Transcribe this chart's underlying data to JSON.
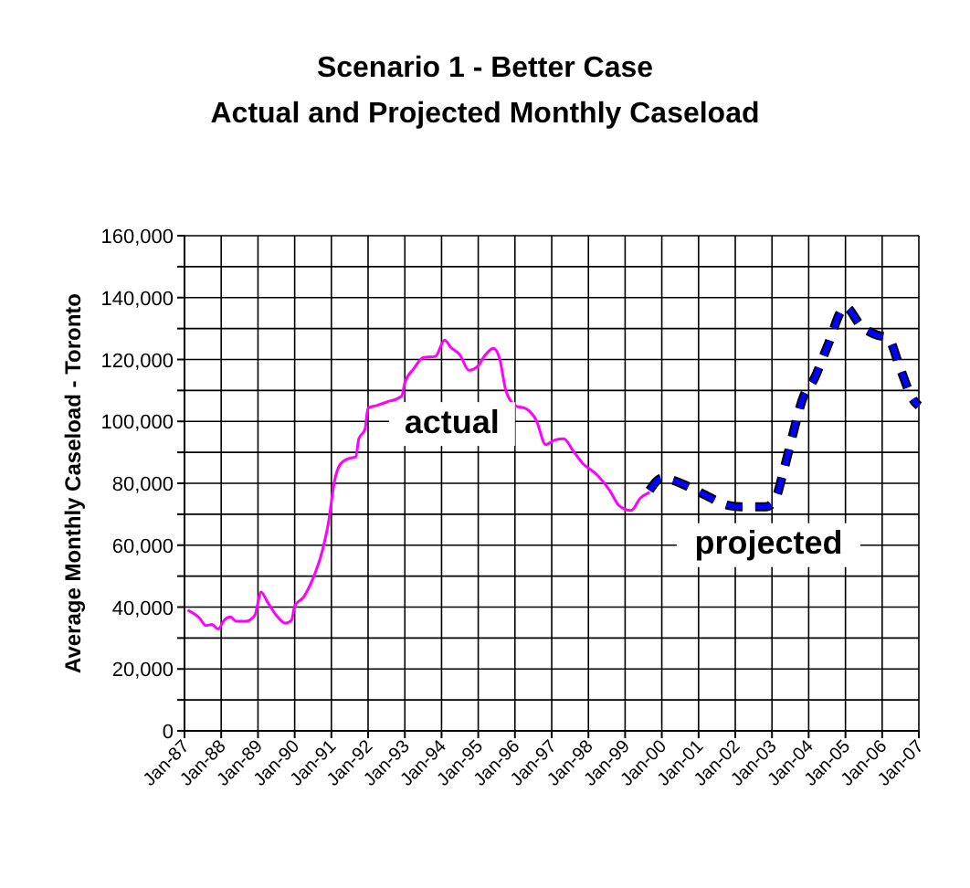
{
  "chart_data": {
    "type": "line",
    "title": "Scenario 1 - Better Case\nActual and Projected Monthly Caseload",
    "ylabel": "Average Monthly Caseload - Toronto",
    "series": [
      {
        "name": "actual",
        "color": "#ff00ff",
        "line_style": "solid",
        "x": [
          "1987-02",
          "1987-06",
          "1987-08",
          "1987-10",
          "1987-12",
          "1988-02",
          "1988-04",
          "1988-06",
          "1988-09",
          "1988-12",
          "1989-02",
          "1989-04",
          "1989-07",
          "1989-10",
          "1989-12",
          "1990-01",
          "1990-04",
          "1990-07",
          "1990-10",
          "1990-12",
          "1991-02",
          "1991-04",
          "1991-07",
          "1991-09",
          "1991-10",
          "1991-12",
          "1992-01",
          "1992-04",
          "1992-07",
          "1992-12",
          "1993-01",
          "1993-04",
          "1993-07",
          "1993-11",
          "1994-02",
          "1994-04",
          "1994-07",
          "1994-10",
          "1995-01",
          "1995-03",
          "1995-06",
          "1995-08",
          "1995-10",
          "1996-01",
          "1996-05",
          "1996-08",
          "1996-11",
          "1997-02",
          "1997-05",
          "1997-08",
          "1997-11",
          "1998-04",
          "1998-08",
          "1998-11",
          "1999-03",
          "1999-06",
          "1999-09"
        ],
        "values": [
          39000,
          36400,
          34000,
          34400,
          32900,
          35800,
          36800,
          35400,
          35400,
          37400,
          44900,
          41900,
          37400,
          34800,
          35800,
          40300,
          43300,
          49200,
          58000,
          66900,
          80700,
          86200,
          88100,
          88500,
          94400,
          97400,
          104300,
          105200,
          106200,
          108200,
          112500,
          117100,
          120600,
          121000,
          126300,
          124000,
          121600,
          116500,
          118000,
          121000,
          123600,
          120400,
          110200,
          105200,
          103900,
          100300,
          92500,
          94000,
          94400,
          90500,
          86600,
          82600,
          77700,
          72800,
          71200,
          75200,
          77100
        ]
      },
      {
        "name": "projected",
        "color": "#0000ff",
        "line_style": "dashed",
        "x": [
          "1999-09",
          "2000-01",
          "2000-11",
          "2001-03",
          "2001-11",
          "2002-03",
          "2002-11",
          "2003-02",
          "2003-05",
          "2003-08",
          "2003-11",
          "2004-03",
          "2004-07",
          "2005-01",
          "2005-06",
          "2005-11",
          "2006-03",
          "2006-07",
          "2006-11",
          "2007-01"
        ],
        "values": [
          77700,
          81600,
          78300,
          76300,
          72800,
          72400,
          72400,
          74800,
          84600,
          96400,
          107200,
          114100,
          123900,
          137000,
          131000,
          128000,
          126900,
          117000,
          107200,
          105000
        ]
      }
    ],
    "xlim": [
      "1987-01",
      "2007-01"
    ],
    "xticks": [
      {
        "value": "1987-01",
        "label": "Jan-87"
      },
      {
        "value": "1988-01",
        "label": "Jan-88"
      },
      {
        "value": "1989-01",
        "label": "Jan-89"
      },
      {
        "value": "1990-01",
        "label": "Jan-90"
      },
      {
        "value": "1991-01",
        "label": "Jan-91"
      },
      {
        "value": "1992-01",
        "label": "Jan-92"
      },
      {
        "value": "1993-01",
        "label": "Jan-93"
      },
      {
        "value": "1994-01",
        "label": "Jan-94"
      },
      {
        "value": "1995-01",
        "label": "Jan-95"
      },
      {
        "value": "1996-01",
        "label": "Jan-96"
      },
      {
        "value": "1997-01",
        "label": "Jan-97"
      },
      {
        "value": "1998-01",
        "label": "Jan-98"
      },
      {
        "value": "1999-01",
        "label": "Jan-99"
      },
      {
        "value": "2000-01",
        "label": "Jan-00"
      },
      {
        "value": "2001-01",
        "label": "Jan-01"
      },
      {
        "value": "2002-01",
        "label": "Jan-02"
      },
      {
        "value": "2003-01",
        "label": "Jan-03"
      },
      {
        "value": "2004-01",
        "label": "Jan-04"
      },
      {
        "value": "2005-01",
        "label": "Jan-05"
      },
      {
        "value": "2006-01",
        "label": "Jan-06"
      },
      {
        "value": "2007-01",
        "label": "Jan-07"
      }
    ],
    "ylim": [
      0,
      160000
    ],
    "yticks": [
      {
        "value": 0,
        "label": "0"
      },
      {
        "value": 10000,
        "label": null
      },
      {
        "value": 20000,
        "label": "20,000"
      },
      {
        "value": 30000,
        "label": null
      },
      {
        "value": 40000,
        "label": "40,000"
      },
      {
        "value": 50000,
        "label": null
      },
      {
        "value": 60000,
        "label": "60,000"
      },
      {
        "value": 70000,
        "label": null
      },
      {
        "value": 80000,
        "label": "80,000"
      },
      {
        "value": 90000,
        "label": null
      },
      {
        "value": 100000,
        "label": "100,000"
      },
      {
        "value": 110000,
        "label": null
      },
      {
        "value": 120000,
        "label": "120,000"
      },
      {
        "value": 130000,
        "label": null
      },
      {
        "value": 140000,
        "label": "140,000"
      },
      {
        "value": 150000,
        "label": null
      },
      {
        "value": 160000,
        "label": "160,000"
      }
    ],
    "grid": true,
    "marker": "none"
  }
}
